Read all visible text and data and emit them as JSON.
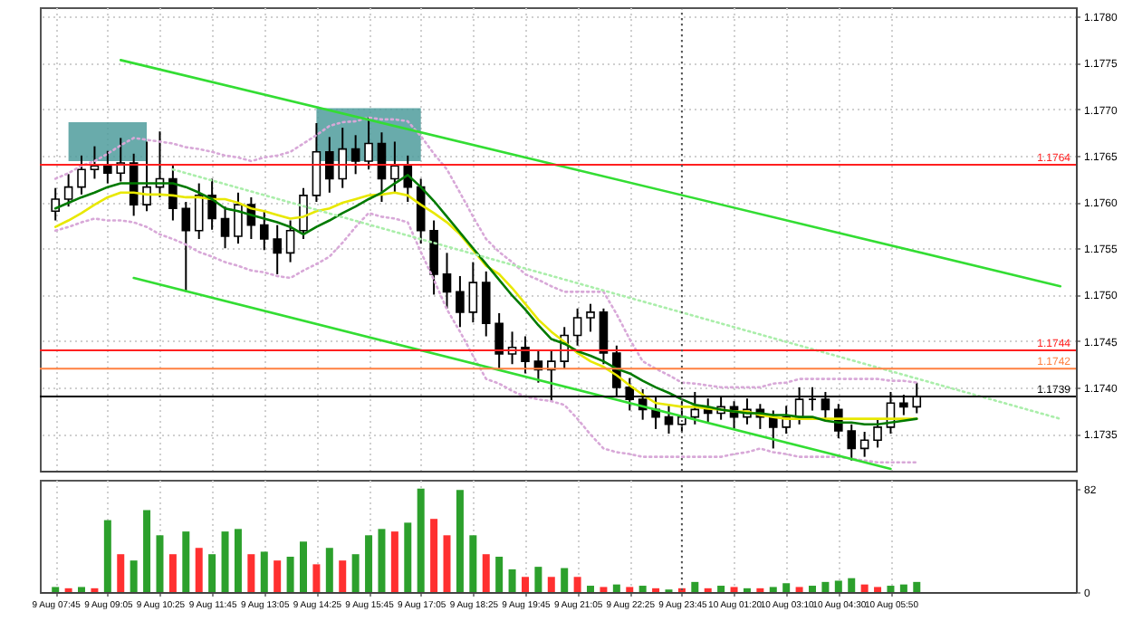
{
  "chart_data": [
    {
      "type": "candlestick",
      "categories": [
        "9 Aug 07:45",
        null,
        null,
        null,
        "9 Aug 09:05",
        null,
        null,
        null,
        "9 Aug 10:25",
        null,
        null,
        null,
        "9 Aug 11:45",
        null,
        null,
        null,
        "9 Aug 13:05",
        null,
        null,
        null,
        "9 Aug 14:25",
        null,
        null,
        null,
        "9 Aug 15:45",
        null,
        null,
        null,
        "9 Aug 17:05",
        null,
        null,
        null,
        "9 Aug 18:25",
        null,
        null,
        null,
        "9 Aug 19:45",
        null,
        null,
        null,
        "9 Aug 21:05",
        null,
        null,
        null,
        "9 Aug 22:25",
        null,
        null,
        null,
        "9 Aug 23:45",
        null,
        null,
        null,
        "10 Aug 01:20",
        null,
        null,
        null,
        "10 Aug 03:10",
        null,
        null,
        null,
        "10 Aug 04:30",
        null,
        null,
        null,
        "10 Aug 05:50",
        null,
        null,
        null,
        null,
        null,
        null,
        null,
        null,
        null,
        null,
        null,
        null,
        null
      ],
      "ohlc": [
        [
          1.1759,
          1.17615,
          1.1758,
          1.17603
        ],
        [
          1.17603,
          1.1763,
          1.17595,
          1.17616
        ],
        [
          1.17616,
          1.1765,
          1.17608,
          1.17635
        ],
        [
          1.17635,
          1.1766,
          1.17625,
          1.17639
        ],
        [
          1.17639,
          1.17655,
          1.1762,
          1.17631
        ],
        [
          1.17631,
          1.17669,
          1.17622,
          1.17642
        ],
        [
          1.17642,
          1.17652,
          1.17585,
          1.17597
        ],
        [
          1.17597,
          1.17665,
          1.1759,
          1.17616
        ],
        [
          1.17616,
          1.17676,
          1.17605,
          1.17625
        ],
        [
          1.17625,
          1.1764,
          1.1758,
          1.17593
        ],
        [
          1.17593,
          1.176,
          1.17503,
          1.17569
        ],
        [
          1.17569,
          1.1762,
          1.1756,
          1.17607
        ],
        [
          1.17607,
          1.17625,
          1.1757,
          1.17582
        ],
        [
          1.17582,
          1.17595,
          1.1755,
          1.17563
        ],
        [
          1.17563,
          1.1761,
          1.17555,
          1.17597
        ],
        [
          1.17597,
          1.17605,
          1.1756,
          1.17575
        ],
        [
          1.17575,
          1.1759,
          1.17548,
          1.1756
        ],
        [
          1.1756,
          1.17575,
          1.17522,
          1.17545
        ],
        [
          1.17545,
          1.1758,
          1.17535,
          1.17569
        ],
        [
          1.17569,
          1.17615,
          1.1756,
          1.17607
        ],
        [
          1.17607,
          1.17685,
          1.176,
          1.17654
        ],
        [
          1.17654,
          1.1767,
          1.1761,
          1.17625
        ],
        [
          1.17625,
          1.1768,
          1.17615,
          1.17657
        ],
        [
          1.17657,
          1.17672,
          1.1763,
          1.17644
        ],
        [
          1.17644,
          1.17691,
          1.17635,
          1.17663
        ],
        [
          1.17663,
          1.17675,
          1.176,
          1.17625
        ],
        [
          1.17625,
          1.17665,
          1.1761,
          1.17639
        ],
        [
          1.17639,
          1.1765,
          1.176,
          1.17616
        ],
        [
          1.17616,
          1.17625,
          1.17555,
          1.17569
        ],
        [
          1.17569,
          1.1758,
          1.175,
          1.17522
        ],
        [
          1.17522,
          1.17545,
          1.17485,
          1.17503
        ],
        [
          1.17503,
          1.1752,
          1.17465,
          1.17481
        ],
        [
          1.17481,
          1.17535,
          1.1747,
          1.17513
        ],
        [
          1.17513,
          1.17525,
          1.17455,
          1.17469
        ],
        [
          1.17469,
          1.1748,
          1.1742,
          1.17436
        ],
        [
          1.17436,
          1.1746,
          1.17425,
          1.17443
        ],
        [
          1.17443,
          1.17455,
          1.17415,
          1.17428
        ],
        [
          1.17428,
          1.1744,
          1.17405,
          1.17419
        ],
        [
          1.17419,
          1.1744,
          1.17385,
          1.17428
        ],
        [
          1.17428,
          1.17465,
          1.1742,
          1.17456
        ],
        [
          1.17456,
          1.17485,
          1.17445,
          1.17475
        ],
        [
          1.17475,
          1.1749,
          1.1746,
          1.17481
        ],
        [
          1.17481,
          1.17485,
          1.17425,
          1.17437
        ],
        [
          1.17437,
          1.17445,
          1.1739,
          1.174
        ],
        [
          1.174,
          1.1741,
          1.17375,
          1.17387
        ],
        [
          1.17387,
          1.17398,
          1.17365,
          1.17376
        ],
        [
          1.17376,
          1.1739,
          1.17355,
          1.17368
        ],
        [
          1.17368,
          1.1738,
          1.1735,
          1.1736
        ],
        [
          1.1736,
          1.17385,
          1.17352,
          1.17368
        ],
        [
          1.17368,
          1.17395,
          1.1736,
          1.17376
        ],
        [
          1.17376,
          1.17388,
          1.17362,
          1.17372
        ],
        [
          1.17372,
          1.1739,
          1.17365,
          1.17379
        ],
        [
          1.17379,
          1.17385,
          1.17355,
          1.17368
        ],
        [
          1.17368,
          1.17388,
          1.1736,
          1.17376
        ],
        [
          1.17376,
          1.17382,
          1.17355,
          1.17368
        ],
        [
          1.17368,
          1.17375,
          1.17334,
          1.17357
        ],
        [
          1.17357,
          1.1738,
          1.1735,
          1.17368
        ],
        [
          1.17368,
          1.174,
          1.1736,
          1.17387
        ],
        [
          1.17387,
          1.174,
          1.17375,
          1.17387
        ],
        [
          1.17387,
          1.17395,
          1.17365,
          1.17376
        ],
        [
          1.17376,
          1.17382,
          1.17345,
          1.17353
        ],
        [
          1.17353,
          1.1736,
          1.17321,
          1.17334
        ],
        [
          1.17334,
          1.17352,
          1.17325,
          1.17343
        ],
        [
          1.17343,
          1.17365,
          1.17335,
          1.17357
        ],
        [
          1.17357,
          1.17395,
          1.1735,
          1.17383
        ],
        [
          1.17383,
          1.17392,
          1.1737,
          1.17379
        ],
        [
          1.17379,
          1.17405,
          1.17372,
          1.1739
        ],
        null,
        null,
        null,
        null,
        null,
        null,
        null,
        null,
        null,
        null,
        null
      ],
      "series": [
        {
          "type": "area",
          "color": "#4f9c9c",
          "values": [
            null,
            null,
            null,
            null,
            null,
            null,
            null,
            null,
            null,
            null,
            null,
            null,
            null,
            null,
            null,
            null,
            null,
            null,
            null,
            null,
            null,
            null,
            null,
            null,
            null,
            null,
            null,
            null,
            null,
            null,
            null,
            null,
            null,
            null,
            null,
            null,
            null,
            null,
            null,
            null,
            null,
            null,
            null,
            null,
            null,
            null,
            null,
            null,
            null,
            null,
            null,
            null,
            null,
            null,
            null,
            null,
            null,
            null,
            null,
            null,
            null,
            null,
            null,
            null,
            null,
            null,
            null,
            null,
            null,
            null,
            null,
            null,
            null,
            null,
            null,
            null,
            null,
            null
          ],
          "lower": [
            null,
            1.17644,
            1.17644,
            1.17644,
            1.17644,
            1.17644,
            1.17644,
            1.17644,
            null,
            null,
            null,
            null,
            null,
            null,
            null,
            null,
            null,
            null,
            null,
            null,
            null,
            null,
            null,
            null,
            null,
            null,
            null,
            null,
            null,
            null,
            null,
            null,
            null,
            null,
            null,
            null,
            null,
            null,
            null,
            null,
            null,
            null,
            null,
            null,
            null,
            null,
            null,
            null,
            null,
            null,
            null,
            null,
            null,
            null,
            null,
            null,
            null,
            null,
            null,
            null,
            null,
            null,
            null,
            null,
            null,
            null,
            null,
            null,
            null,
            null,
            null,
            null,
            null,
            null,
            null,
            null,
            null,
            null
          ],
          "upper": [
            null,
            1.17686,
            1.17686,
            1.17686,
            1.17686,
            1.17686,
            1.17686,
            1.17686,
            null,
            null,
            null,
            null,
            null,
            null,
            null,
            null,
            null,
            null,
            null,
            null,
            null,
            null,
            null,
            null,
            null,
            null,
            null,
            null,
            null,
            null,
            null,
            null,
            null,
            null,
            null,
            null,
            null,
            null,
            null,
            null,
            null,
            null,
            null,
            null,
            null,
            null,
            null,
            null,
            null,
            null,
            null,
            null,
            null,
            null,
            null,
            null,
            null,
            null,
            null,
            null,
            null,
            null,
            null,
            null,
            null,
            null,
            null,
            null,
            null,
            null,
            null,
            null,
            null,
            null,
            null,
            null,
            null,
            null
          ]
        },
        {
          "type": "area",
          "color": "#4f9c9c",
          "values": [
            null,
            null,
            null,
            null,
            null,
            null,
            null,
            null,
            null,
            null,
            null,
            null,
            null,
            null,
            null,
            null,
            null,
            null,
            null,
            null,
            null,
            null,
            null,
            null,
            null,
            null,
            null,
            null,
            null,
            null,
            null,
            null,
            null,
            null,
            null,
            null,
            null,
            null,
            null,
            null,
            null,
            null,
            null,
            null,
            null,
            null,
            null,
            null,
            null,
            null,
            null,
            null,
            null,
            null,
            null,
            null,
            null,
            null,
            null,
            null,
            null,
            null,
            null,
            null,
            null,
            null,
            null,
            null,
            null,
            null,
            null,
            null,
            null,
            null,
            null,
            null,
            null,
            null
          ],
          "lower": [
            null,
            null,
            null,
            null,
            null,
            null,
            null,
            null,
            null,
            null,
            null,
            null,
            null,
            null,
            null,
            null,
            null,
            null,
            null,
            null,
            1.17644,
            1.17644,
            1.17644,
            1.17644,
            1.17644,
            1.17644,
            1.17644,
            1.17644,
            1.17644,
            null,
            null,
            null,
            null,
            null,
            null,
            null,
            null,
            null,
            null,
            null,
            null,
            null,
            null,
            null,
            null,
            null,
            null,
            null,
            null,
            null,
            null,
            null,
            null,
            null,
            null,
            null,
            null,
            null,
            null,
            null,
            null,
            null,
            null,
            null,
            null,
            null,
            null,
            null,
            null,
            null,
            null,
            null,
            null,
            null,
            null,
            null,
            null,
            null
          ],
          "upper": [
            null,
            null,
            null,
            null,
            null,
            null,
            null,
            null,
            null,
            null,
            null,
            null,
            null,
            null,
            null,
            null,
            null,
            null,
            null,
            null,
            1.17701,
            1.17701,
            1.17701,
            1.17701,
            1.17701,
            1.17701,
            1.17701,
            1.17701,
            1.17701,
            null,
            null,
            null,
            null,
            null,
            null,
            null,
            null,
            null,
            null,
            null,
            null,
            null,
            null,
            null,
            null,
            null,
            null,
            null,
            null,
            null,
            null,
            null,
            null,
            null,
            null,
            null,
            null,
            null,
            null,
            null,
            null,
            null,
            null,
            null,
            null,
            null,
            null,
            null,
            null,
            null,
            null,
            null,
            null,
            null,
            null,
            null,
            null,
            null
          ]
        },
        {
          "type": "line",
          "color": "#d8a8d8",
          "line_style": "dotted",
          "values": [
            1.17625,
            1.17631,
            1.17639,
            1.17644,
            1.17652,
            1.17661,
            1.17669,
            1.17667,
            1.17665,
            1.17663,
            1.17659,
            1.17657,
            1.17654,
            1.1765,
            1.17648,
            1.17644,
            1.17648,
            1.1765,
            1.17654,
            1.17663,
            1.17672,
            1.17682,
            1.17686,
            1.17687,
            1.17691,
            1.17689,
            1.17689,
            1.17687,
            1.17671,
            1.17652,
            1.17635,
            1.1761,
            1.17584,
            1.1756,
            1.17546,
            1.17535,
            1.17522,
            1.17516,
            1.17509,
            1.17503,
            1.17503,
            1.17503,
            1.17503,
            1.17479,
            1.17452,
            1.17428,
            1.1742,
            1.17413,
            1.17405,
            1.17404,
            1.17402,
            1.174,
            1.174,
            1.174,
            1.174,
            1.17404,
            1.17405,
            1.17409,
            1.17409,
            1.17409,
            1.17409,
            1.17409,
            1.17409,
            1.17409,
            1.17407,
            1.17407,
            1.17405,
            null,
            null,
            null,
            null,
            null,
            null,
            null,
            null,
            null,
            null,
            null
          ]
        },
        {
          "type": "line",
          "color": "#d8a8d8",
          "line_style": "dotted",
          "values": [
            1.17569,
            1.17573,
            1.17578,
            1.17582,
            1.1758,
            1.1758,
            1.17578,
            1.17573,
            1.17565,
            1.1756,
            1.17554,
            1.17546,
            1.17541,
            1.17535,
            1.17531,
            1.17526,
            1.17524,
            1.1752,
            1.17518,
            1.17526,
            1.17533,
            1.17541,
            1.17556,
            1.17573,
            1.17588,
            1.17584,
            1.17582,
            1.17578,
            1.17546,
            1.17516,
            1.17484,
            1.1746,
            1.17434,
            1.17409,
            1.17404,
            1.17396,
            1.1739,
            1.17387,
            1.17385,
            1.17381,
            1.17366,
            1.17349,
            1.17334,
            1.1733,
            1.17328,
            1.17325,
            1.17325,
            1.17325,
            1.17325,
            1.17325,
            1.17325,
            1.17325,
            1.17328,
            1.1733,
            1.17334,
            1.1733,
            1.17328,
            1.17325,
            1.17325,
            1.17325,
            1.17325,
            1.17323,
            1.17321,
            1.17319,
            1.17319,
            1.17319,
            1.17319,
            null,
            null,
            null,
            null,
            null,
            null,
            null,
            null,
            null,
            null,
            null
          ]
        },
        {
          "type": "line",
          "color": "#e8e800",
          "line_style": "solid",
          "values": [
            1.17573,
            1.1758,
            1.17588,
            1.17597,
            1.17605,
            1.1761,
            1.1761,
            1.17608,
            1.17608,
            1.17607,
            1.17605,
            1.17605,
            1.17603,
            1.17603,
            1.17599,
            1.17593,
            1.1759,
            1.17586,
            1.17582,
            1.17584,
            1.1759,
            1.17593,
            1.17599,
            1.17603,
            1.17607,
            1.17608,
            1.1761,
            1.17607,
            1.17597,
            1.17588,
            1.17578,
            1.17565,
            1.17548,
            1.17531,
            1.17522,
            1.17507,
            1.1749,
            1.17473,
            1.1746,
            1.17449,
            1.17437,
            1.17428,
            1.17422,
            1.17413,
            1.17402,
            1.17392,
            1.17383,
            1.17381,
            1.17379,
            1.17379,
            1.17377,
            1.17376,
            1.17374,
            1.17374,
            1.1737,
            1.17368,
            1.17366,
            1.17366,
            1.17366,
            1.17366,
            1.17366,
            1.17366,
            1.17366,
            1.17366,
            1.17366,
            1.17366,
            1.17366,
            null,
            null,
            null,
            null,
            null,
            null,
            null,
            null,
            null,
            null,
            null
          ]
        },
        {
          "type": "line",
          "color": "#007a00",
          "line_style": "solid",
          "values": [
            1.17593,
            1.17599,
            1.17605,
            1.1761,
            1.17616,
            1.1762,
            1.1762,
            1.1762,
            1.1762,
            1.1762,
            1.17616,
            1.1761,
            1.17603,
            1.17593,
            1.1759,
            1.17586,
            1.17582,
            1.17578,
            1.17573,
            1.17565,
            1.17573,
            1.1758,
            1.17588,
            1.17595,
            1.17603,
            1.1761,
            1.1762,
            1.17629,
            1.17616,
            1.17601,
            1.17584,
            1.17567,
            1.1755,
            1.17533,
            1.17516,
            1.17499,
            1.17484,
            1.17467,
            1.17452,
            1.17447,
            1.17439,
            1.17434,
            1.17428,
            1.1742,
            1.17415,
            1.17407,
            1.174,
            1.17394,
            1.17387,
            1.17381,
            1.17379,
            1.17376,
            1.17374,
            1.17372,
            1.17372,
            1.1737,
            1.1737,
            1.17368,
            1.17368,
            1.17364,
            1.17362,
            1.17362,
            1.1736,
            1.1736,
            1.17362,
            1.17364,
            1.17366,
            null,
            null,
            null,
            null,
            null,
            null,
            null,
            null,
            null,
            null,
            null
          ]
        },
        {
          "type": "line",
          "color": "#33dd33",
          "line_style": "solid",
          "values": [
            null,
            null,
            null,
            null,
            null,
            1.17753,
            null,
            null,
            null,
            null,
            null,
            null,
            null,
            null,
            null,
            null,
            null,
            null,
            null,
            null,
            null,
            null,
            null,
            null,
            null,
            null,
            null,
            null,
            null,
            null,
            null,
            null,
            null,
            null,
            null,
            null,
            null,
            null,
            null,
            null,
            null,
            null,
            null,
            null,
            null,
            null,
            null,
            null,
            null,
            null,
            null,
            null,
            null,
            null,
            null,
            null,
            null,
            null,
            null,
            null,
            null,
            null,
            null,
            null,
            null,
            null,
            null,
            null,
            null,
            null,
            null,
            null,
            null,
            null,
            null,
            null,
            null,
            1.17509
          ]
        },
        {
          "type": "line",
          "color": "#33dd33",
          "line_style": "solid",
          "values": [
            null,
            null,
            null,
            null,
            null,
            null,
            1.17518,
            null,
            null,
            null,
            null,
            null,
            null,
            null,
            null,
            null,
            null,
            null,
            null,
            null,
            null,
            null,
            null,
            null,
            null,
            null,
            null,
            null,
            null,
            null,
            null,
            null,
            null,
            null,
            null,
            null,
            null,
            null,
            null,
            null,
            null,
            null,
            null,
            null,
            null,
            null,
            null,
            null,
            null,
            null,
            null,
            null,
            null,
            null,
            null,
            null,
            null,
            null,
            null,
            null,
            null,
            null,
            null,
            null,
            1.17312,
            null,
            null,
            null,
            null,
            null,
            null,
            null,
            null,
            null,
            null,
            null,
            null,
            null
          ]
        },
        {
          "type": "line",
          "color": "#aaeeaa",
          "line_style": "dotted",
          "values": [
            null,
            null,
            null,
            null,
            null,
            null,
            null,
            null,
            null,
            1.17635,
            null,
            null,
            null,
            null,
            null,
            null,
            null,
            null,
            null,
            null,
            null,
            null,
            null,
            null,
            null,
            null,
            null,
            null,
            null,
            null,
            null,
            null,
            null,
            null,
            null,
            null,
            null,
            null,
            null,
            null,
            null,
            null,
            null,
            null,
            null,
            null,
            null,
            null,
            null,
            null,
            null,
            null,
            null,
            null,
            null,
            null,
            null,
            null,
            null,
            null,
            null,
            null,
            null,
            null,
            null,
            null,
            null,
            null,
            null,
            null,
            null,
            null,
            null,
            null,
            null,
            null,
            null,
            1.17366
          ]
        }
      ],
      "ylim": [
        1.1731,
        1.1781
      ],
      "yticks": [
        1.1735,
        {
          "value": 1.174,
          "label": "1.1740"
        },
        1.1745,
        {
          "value": 1.175,
          "label": "1.1750"
        },
        1.1755,
        {
          "value": 1.176,
          "label": "1.1760"
        },
        1.1765,
        {
          "value": 1.177,
          "label": "1.1770"
        },
        1.1775,
        {
          "value": 1.178,
          "label": "1.1780"
        }
      ],
      "grid": true,
      "tick_labels": "y",
      "ref_lines": [
        {
          "axis": "y",
          "value": 1.1764,
          "label": "1.1764",
          "color": "#ff2020"
        },
        {
          "axis": "y",
          "value": 1.1744,
          "label": "1.1744",
          "color": "#ff2020"
        },
        {
          "axis": "y",
          "value": 1.1742,
          "label": "1.1742",
          "color": "#ff8040"
        },
        {
          "axis": "y",
          "value": 1.1739,
          "label": "1.1739",
          "color": "#000000"
        },
        {
          "axis": "x",
          "value": "9 Aug 23:45",
          "color": "#555555",
          "line_style": "dotted"
        }
      ]
    },
    {
      "type": "bar",
      "categories": [
        "9 Aug 07:45",
        null,
        null,
        null,
        "9 Aug 09:05",
        null,
        null,
        null,
        "9 Aug 10:25",
        null,
        null,
        null,
        "9 Aug 11:45",
        null,
        null,
        null,
        "9 Aug 13:05",
        null,
        null,
        null,
        "9 Aug 14:25",
        null,
        null,
        null,
        "9 Aug 15:45",
        null,
        null,
        null,
        "9 Aug 17:05",
        null,
        null,
        null,
        "9 Aug 18:25",
        null,
        null,
        null,
        "9 Aug 19:45",
        null,
        null,
        null,
        "9 Aug 21:05",
        null,
        null,
        null,
        "9 Aug 22:25",
        null,
        null,
        null,
        "9 Aug 23:45",
        null,
        null,
        null,
        "10 Aug 01:20",
        null,
        null,
        null,
        "10 Aug 03:10",
        null,
        null,
        null,
        "10 Aug 04:30",
        null,
        null,
        null,
        "10 Aug 05:50",
        null,
        null,
        null,
        null,
        null,
        null,
        null,
        null,
        null,
        null,
        null,
        null,
        null
      ],
      "values": [
        4,
        3,
        4,
        3,
        57,
        30,
        25,
        65,
        45,
        30,
        48,
        35,
        30,
        48,
        50,
        30,
        32,
        25,
        28,
        40,
        22,
        35,
        25,
        30,
        45,
        50,
        48,
        55,
        82,
        58,
        45,
        81,
        45,
        30,
        28,
        18,
        12,
        20,
        12,
        19,
        12,
        5,
        4,
        6,
        4,
        5,
        3,
        2,
        3,
        8,
        3,
        5,
        4,
        3,
        3,
        4,
        7,
        4,
        5,
        8,
        9,
        11,
        6,
        4,
        5,
        6,
        8,
        null,
        null,
        null,
        null,
        null,
        null,
        null,
        null,
        null,
        null,
        null
      ],
      "colors": [
        "#2ca02c",
        "#ff3030",
        "#2ca02c",
        "#ff3030",
        "#2ca02c",
        "#ff3030",
        "#2ca02c",
        "#2ca02c",
        "#2ca02c",
        "#ff3030",
        "#2ca02c",
        "#ff3030",
        "#2ca02c",
        "#2ca02c",
        "#2ca02c",
        "#ff3030",
        "#2ca02c",
        "#ff3030",
        "#2ca02c",
        "#2ca02c",
        "#ff3030",
        "#2ca02c",
        "#ff3030",
        "#2ca02c",
        "#2ca02c",
        "#2ca02c",
        "#ff3030",
        "#2ca02c",
        "#2ca02c",
        "#ff3030",
        "#ff3030",
        "#2ca02c",
        "#2ca02c",
        "#ff3030",
        "#2ca02c",
        "#2ca02c",
        "#ff3030",
        "#2ca02c",
        "#ff3030",
        "#2ca02c",
        "#ff3030",
        "#2ca02c",
        "#ff3030",
        "#2ca02c",
        "#ff3030",
        "#2ca02c",
        "#ff3030",
        "#2ca02c",
        "#ff3030",
        "#2ca02c",
        "#ff3030",
        "#2ca02c",
        "#ff3030",
        "#2ca02c",
        "#ff3030",
        "#2ca02c",
        "#2ca02c",
        "#ff3030",
        "#2ca02c",
        "#2ca02c",
        "#2ca02c",
        "#2ca02c",
        "#ff3030",
        "#ff3030",
        "#2ca02c",
        "#2ca02c",
        "#2ca02c",
        null,
        null,
        null,
        null,
        null,
        null,
        null,
        null,
        null,
        null,
        null
      ],
      "ylim": [
        0,
        89
      ],
      "yticks": [
        0,
        82
      ],
      "grid": "x",
      "ref_lines": [
        {
          "axis": "x",
          "value": "9 Aug 23:45",
          "color": "#555555",
          "line_style": "dotted"
        }
      ]
    }
  ]
}
